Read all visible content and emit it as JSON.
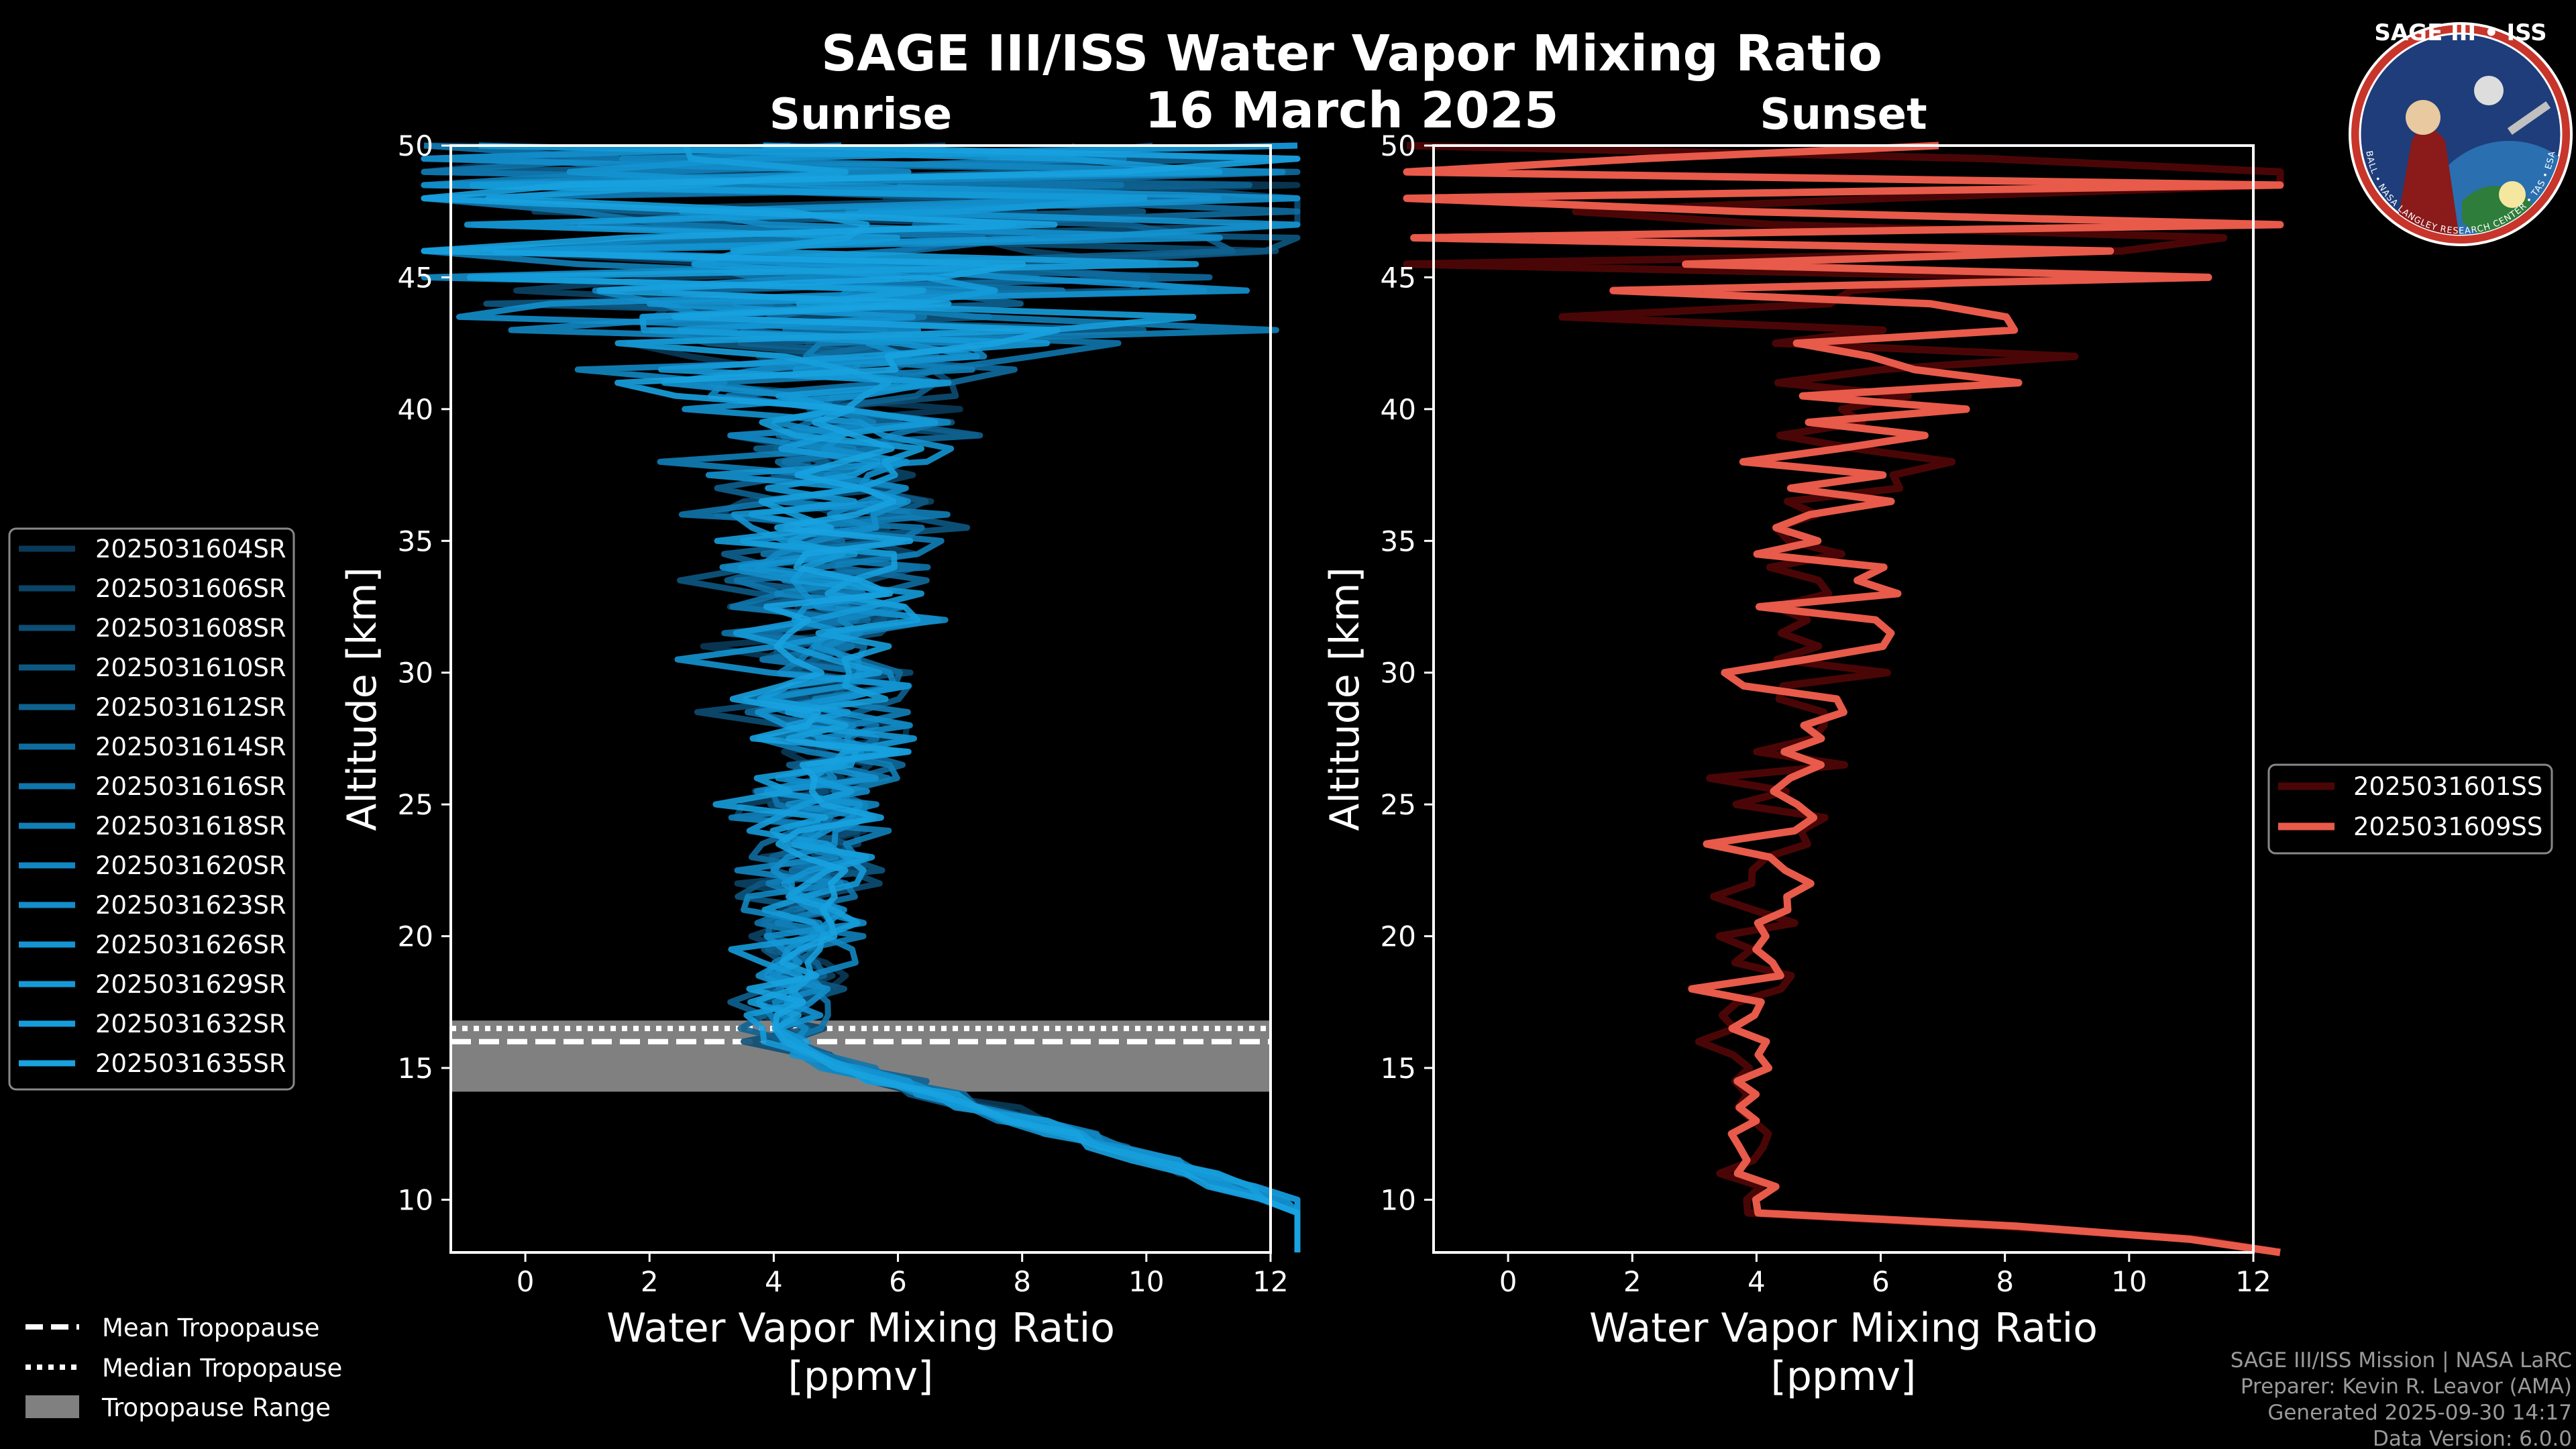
{
  "header": {
    "title": "SAGE III/ISS Water Vapor Mixing Ratio",
    "date": "16 March 2025"
  },
  "logo": {
    "top_text": "SAGE III • ISS",
    "ring_text": "BALL • NASA LANGLEY RESEARCH CENTER • TAS • ESA",
    "colors": {
      "ring": "#c8352a",
      "field": "#1e3d7a"
    }
  },
  "chart_data": [
    {
      "type": "line",
      "panel": "sunrise",
      "title": "Sunrise",
      "xlabel": "Water Vapor Mixing Ratio\n[ppmv]",
      "xlabel_lines": [
        "Water Vapor Mixing Ratio",
        "[ppmv]"
      ],
      "ylabel": "Altitude [km]",
      "xlim": [
        -1.2,
        12
      ],
      "ylim": [
        8,
        50
      ],
      "xticks": [
        0,
        2,
        4,
        6,
        8,
        10,
        12
      ],
      "yticks": [
        10,
        15,
        20,
        25,
        30,
        35,
        40,
        45,
        50
      ],
      "tropopause": {
        "mean": 16.0,
        "median": 16.5,
        "range": [
          14.1,
          16.8
        ]
      },
      "series": [
        {
          "name": "2025031604SR",
          "color": "#0a3a58",
          "seed": 11
        },
        {
          "name": "2025031606SR",
          "color": "#0b4466",
          "seed": 23
        },
        {
          "name": "2025031608SR",
          "color": "#0c4e74",
          "seed": 37
        },
        {
          "name": "2025031610SR",
          "color": "#0d5882",
          "seed": 41
        },
        {
          "name": "2025031612SR",
          "color": "#0e6290",
          "seed": 53
        },
        {
          "name": "2025031614SR",
          "color": "#0f6c9e",
          "seed": 67
        },
        {
          "name": "2025031616SR",
          "color": "#1076ac",
          "seed": 71
        },
        {
          "name": "2025031618SR",
          "color": "#117fb8",
          "seed": 83
        },
        {
          "name": "2025031620SR",
          "color": "#1287c2",
          "seed": 97
        },
        {
          "name": "2025031623SR",
          "color": "#138ecb",
          "seed": 101
        },
        {
          "name": "2025031626SR",
          "color": "#1494d2",
          "seed": 113
        },
        {
          "name": "2025031629SR",
          "color": "#159ad8",
          "seed": 127
        },
        {
          "name": "2025031632SR",
          "color": "#169edc",
          "seed": 131
        },
        {
          "name": "2025031635SR",
          "color": "#18a2e0",
          "seed": 149
        }
      ]
    },
    {
      "type": "line",
      "panel": "sunset",
      "title": "Sunset",
      "xlabel": "Water Vapor Mixing Ratio\n[ppmv]",
      "xlabel_lines": [
        "Water Vapor Mixing Ratio",
        "[ppmv]"
      ],
      "ylabel": "Altitude [km]",
      "xlim": [
        -1.2,
        12
      ],
      "ylim": [
        8,
        50
      ],
      "xticks": [
        0,
        2,
        4,
        6,
        8,
        10,
        12
      ],
      "yticks": [
        10,
        15,
        20,
        25,
        30,
        35,
        40,
        45,
        50
      ],
      "series": [
        {
          "name": "2025031601SS",
          "color": "#4a0606",
          "seed": 7
        },
        {
          "name": "2025031609SS",
          "color": "#e85a4a",
          "seed": 19
        }
      ]
    }
  ],
  "tropopause_legend": [
    {
      "label": "Mean Tropopause",
      "style": "dashed"
    },
    {
      "label": "Median Tropopause",
      "style": "dotted"
    },
    {
      "label": "Tropopause Range",
      "style": "patch",
      "color": "#808080"
    }
  ],
  "footer": [
    "SAGE III/ISS Mission | NASA LaRC",
    "Preparer: Kevin R. Leavor (AMA)",
    "Generated 2025-09-30 14:17",
    "Data Version: 6.0.0"
  ]
}
